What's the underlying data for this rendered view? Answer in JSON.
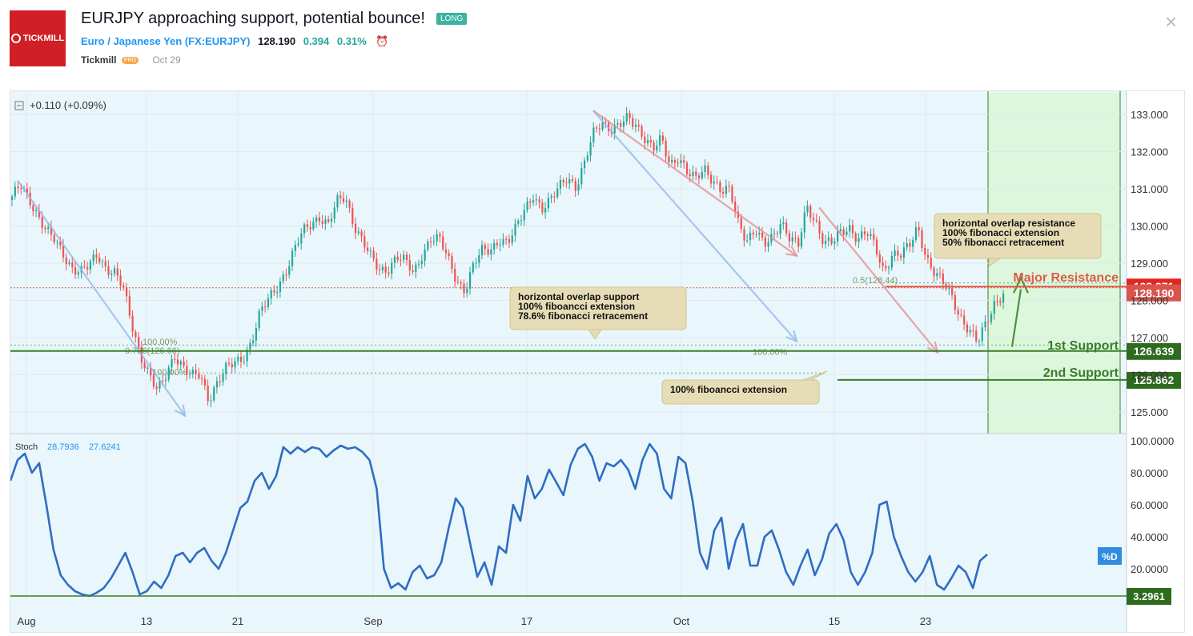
{
  "header": {
    "title": "EURJPY approaching support, potential bounce!",
    "badge": "LONG",
    "logo_text": "TICKMILL",
    "symbol_name": "Euro / Japanese Yen",
    "symbol_code": "(FX:EURJPY)",
    "price": "128.190",
    "change": "0.394",
    "change_pct": "0.31%",
    "author": "Tickmill",
    "author_badge": "PRO",
    "date": "Oct 29",
    "close_glyph": "×"
  },
  "chart_data": [
    {
      "type": "candlestick",
      "title": "",
      "legend_text": "+0.110 (+0.09%)",
      "ylim": [
        124.6,
        133.3
      ],
      "y_ticks": [
        "133.000",
        "132.000",
        "131.000",
        "130.000",
        "129.000",
        "128.000",
        "127.000",
        "126.000",
        "125.000"
      ],
      "y_tick_values": [
        133,
        132,
        131,
        130,
        129,
        128,
        127,
        126,
        125
      ],
      "x_ticks": [
        "Aug",
        "13",
        "21",
        "Sep",
        "17",
        "Oct",
        "15",
        "23"
      ],
      "close_path": [
        130.7,
        131.1,
        130.8,
        130.3,
        129.8,
        129.6,
        129.3,
        128.9,
        128.7,
        128.9,
        129.3,
        128.9,
        128.7,
        128.3,
        127.4,
        126.6,
        126.0,
        125.5,
        126.0,
        126.6,
        126.2,
        125.9,
        126.0,
        125.4,
        125.8,
        126.1,
        126.3,
        126.5,
        126.9,
        127.6,
        128.0,
        128.4,
        128.8,
        129.3,
        129.8,
        130.1,
        130.3,
        130.0,
        130.6,
        130.8,
        130.1,
        129.6,
        129.1,
        128.8,
        128.9,
        129.2,
        129.0,
        128.7,
        129.3,
        129.7,
        129.6,
        129.1,
        128.6,
        128.3,
        128.9,
        129.3,
        129.4,
        129.7,
        129.5,
        129.9,
        130.5,
        130.9,
        130.4,
        130.6,
        131.1,
        131.4,
        131.0,
        131.6,
        132.5,
        132.9,
        132.6,
        132.6,
        132.9,
        132.8,
        132.4,
        132.0,
        132.3,
        131.7,
        131.9,
        131.4,
        131.2,
        131.6,
        131.3,
        130.9,
        130.9,
        130.1,
        129.7,
        129.9,
        129.4,
        129.7,
        130.2,
        129.7,
        129.4,
        130.5,
        130.2,
        129.6,
        129.5,
        129.8,
        130.0,
        129.7,
        129.8,
        129.4,
        128.8,
        129.3,
        129.2,
        129.4,
        130.0,
        129.2,
        128.7,
        128.4,
        128.1,
        127.6,
        127.2,
        126.8,
        127.4,
        128.0,
        128.2
      ],
      "candle_x_range": [
        "Aug 1",
        "Oct 29"
      ],
      "current_price": "128.190",
      "current_price_color": "#d9534f",
      "levels": [
        {
          "name": "Major Resistance",
          "value": "128.371",
          "color": "#e05a4a"
        },
        {
          "name": "1st Support",
          "value": "126.639",
          "color": "#3a7d2a"
        },
        {
          "name": "2nd Support",
          "value": "125.862",
          "color": "#3a7d2a"
        }
      ],
      "fib_labels": [
        "0.5(128.44)",
        "100.00%",
        "100.00%",
        "0.786(126.66)",
        "100.00%"
      ],
      "callouts": [
        [
          "horizontal overlap support",
          "100% fiboancci extension",
          "78.6% fibonacci retracement"
        ],
        [
          "horizontal overlap resistance",
          "100% fibonacci extension",
          "50% fibonacci retracement"
        ],
        [
          "100% fiboancci extension"
        ]
      ]
    },
    {
      "type": "line",
      "name": "Stoch",
      "legend_values": [
        "28.7936",
        "27.6241"
      ],
      "ylim": [
        0,
        100
      ],
      "y_ticks": [
        "100.0000",
        "80.0000",
        "60.0000",
        "40.0000",
        "20.0000"
      ],
      "y_tick_values": [
        100,
        80,
        60,
        40,
        20
      ],
      "series_label": "%D",
      "reference_level": "3.2961",
      "values": [
        75,
        88,
        92,
        80,
        86,
        60,
        32,
        16,
        10,
        6,
        4,
        3,
        5,
        8,
        14,
        22,
        30,
        18,
        4,
        6,
        12,
        8,
        16,
        28,
        30,
        24,
        30,
        33,
        25,
        20,
        30,
        44,
        58,
        62,
        75,
        80,
        70,
        78,
        96,
        92,
        96,
        93,
        96,
        95,
        90,
        94,
        97,
        95,
        96,
        93,
        88,
        70,
        20,
        8,
        11,
        7,
        18,
        22,
        14,
        16,
        24,
        45,
        64,
        58,
        36,
        15,
        24,
        10,
        34,
        30,
        60,
        50,
        78,
        64,
        70,
        82,
        74,
        66,
        85,
        95,
        98,
        90,
        75,
        86,
        84,
        88,
        82,
        70,
        88,
        98,
        92,
        70,
        64,
        90,
        86,
        62,
        30,
        20,
        44,
        52,
        20,
        38,
        48,
        22,
        22,
        40,
        44,
        32,
        18,
        10,
        22,
        32,
        16,
        26,
        42,
        48,
        38,
        18,
        10,
        18,
        30,
        60,
        62,
        40,
        28,
        18,
        12,
        18,
        28,
        10,
        7,
        14,
        22,
        18,
        8,
        25,
        29
      ]
    }
  ],
  "colors": {
    "bull": "#26a69a",
    "bear": "#ef5350",
    "chart_bg": "#e9f6fb",
    "target_zone": "#dcf7dc",
    "resistance": "#e05a4a",
    "support": "#3a7d2a",
    "stoch_line": "#2f6dc4",
    "callout_bg": "#e6ddb6"
  },
  "icons": {
    "logo": "tickmill-logo",
    "alarm": "alarm-clock-icon",
    "collapse": "minus-square-icon"
  }
}
